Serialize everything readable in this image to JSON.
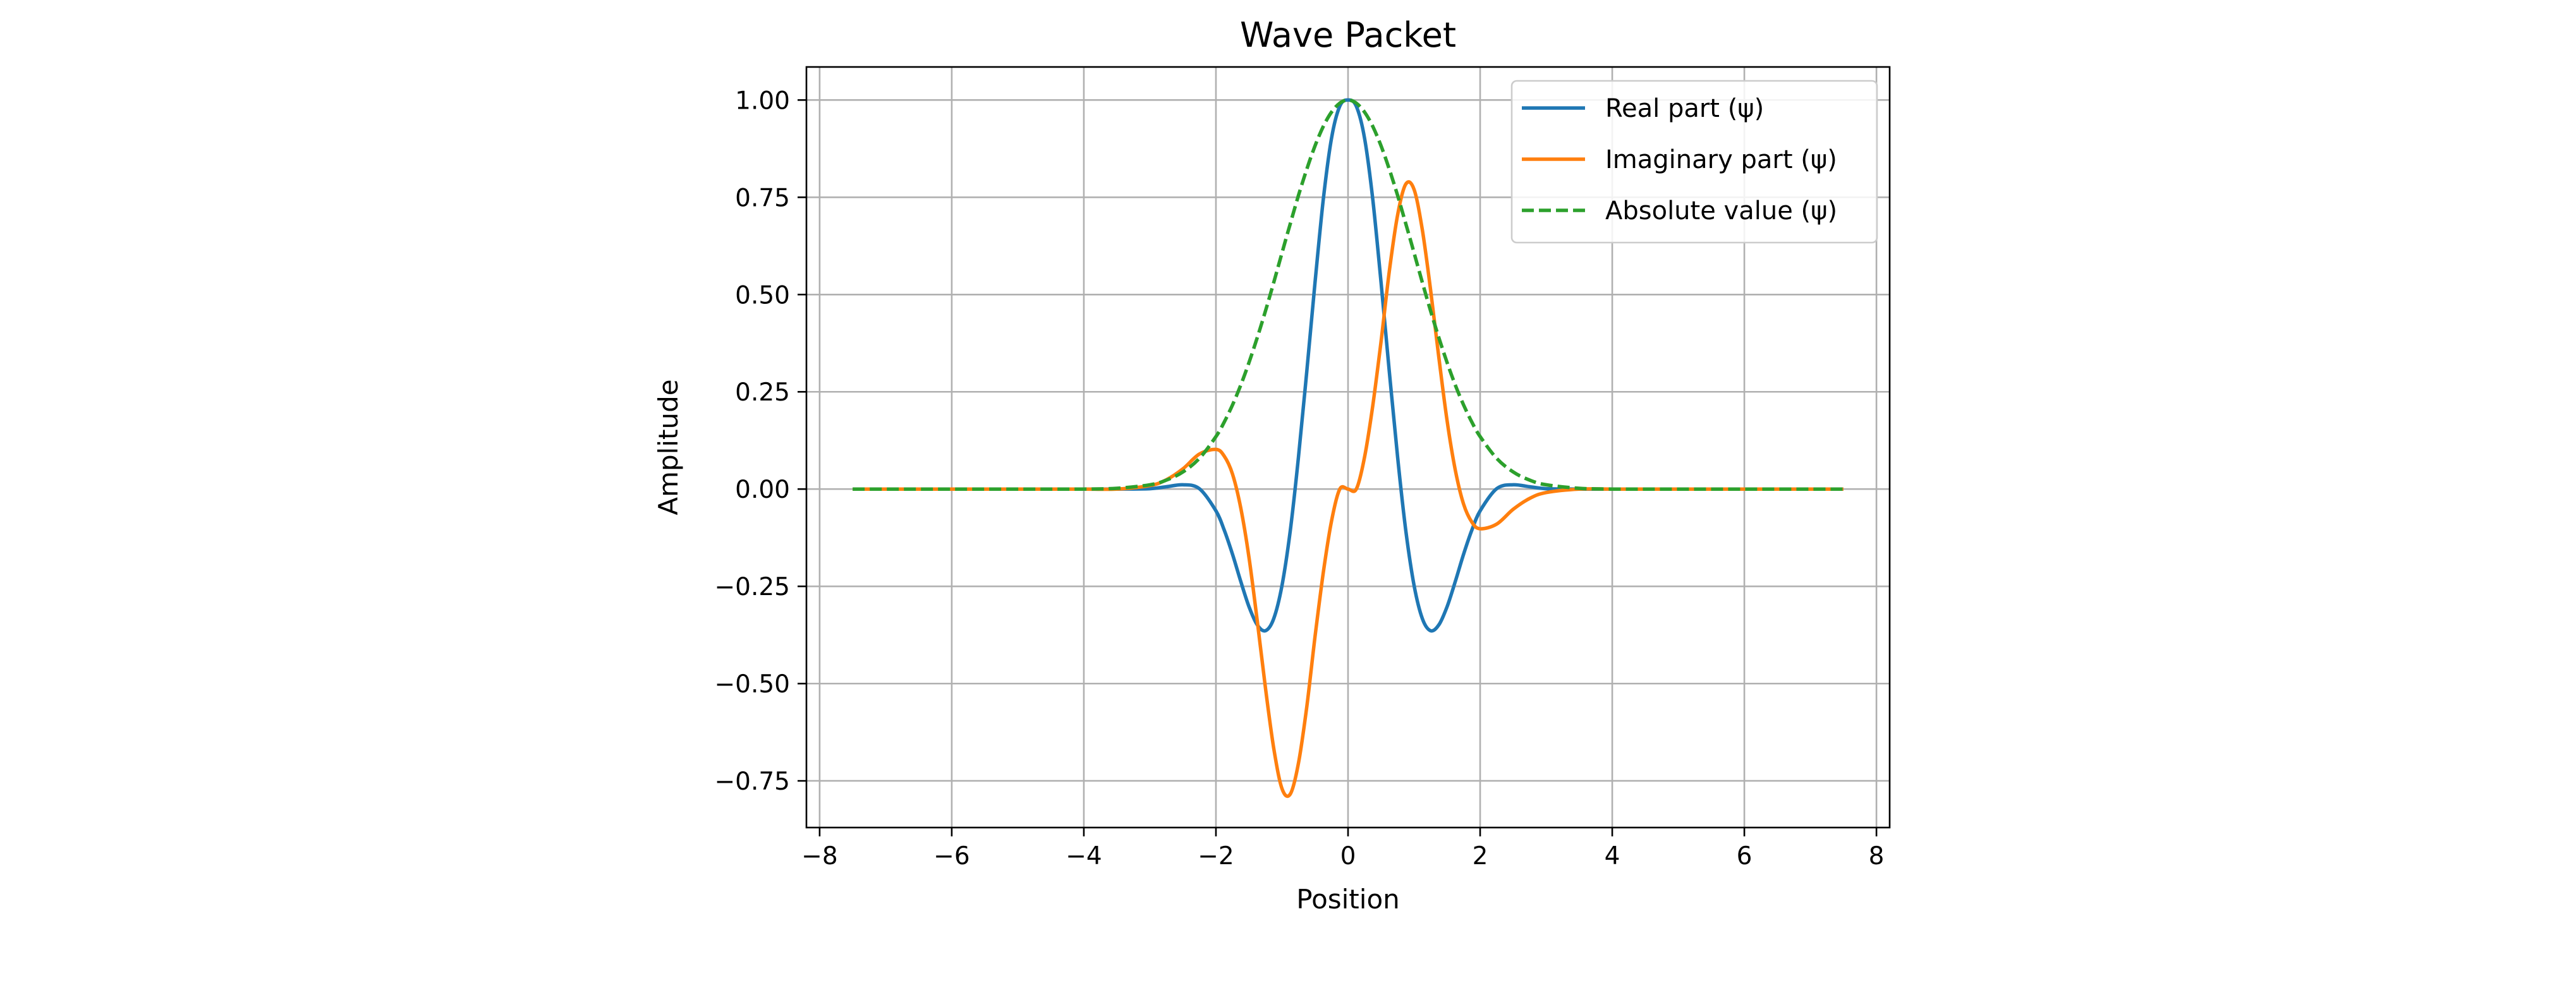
{
  "chart_data": {
    "type": "line",
    "title": "Wave Packet",
    "xlabel": "Position",
    "ylabel": "Amplitude",
    "xlim": [
      -8.2,
      8.2
    ],
    "ylim": [
      -0.87,
      1.085
    ],
    "xticks": [
      -8,
      -6,
      -4,
      -2,
      0,
      2,
      4,
      6,
      8
    ],
    "xtick_labels": [
      "−8",
      "−6",
      "−4",
      "−2",
      "0",
      "2",
      "4",
      "6",
      "8"
    ],
    "yticks": [
      -0.75,
      -0.5,
      -0.25,
      0.0,
      0.25,
      0.5,
      0.75,
      1.0
    ],
    "ytick_labels": [
      "−0.75",
      "−0.50",
      "−0.25",
      "0.00",
      "0.25",
      "0.50",
      "0.75",
      "1.00"
    ],
    "grid": true,
    "legend_position": "top-right",
    "x": [
      -7.5,
      -7.0,
      -6.5,
      -6.0,
      -5.5,
      -5.0,
      -4.5,
      -4.0,
      -3.5,
      -3.0,
      -2.75,
      -2.5,
      -2.25,
      -2.0,
      -1.875,
      -1.75,
      -1.625,
      -1.5,
      -1.375,
      -1.25,
      -1.125,
      -1.0,
      -0.875,
      -0.75,
      -0.625,
      -0.5,
      -0.375,
      -0.25,
      -0.125,
      0.0,
      0.125,
      0.25,
      0.375,
      0.5,
      0.625,
      0.75,
      0.875,
      1.0,
      1.125,
      1.25,
      1.375,
      1.5,
      1.625,
      1.75,
      1.875,
      2.0,
      2.25,
      2.5,
      2.75,
      3.0,
      3.5,
      4.0,
      4.5,
      5.0,
      5.5,
      6.0,
      6.5,
      7.0,
      7.5
    ],
    "series": [
      {
        "name": "Real part (ψ)",
        "color": "#1f77b4",
        "style": "solid",
        "values": [
          0.0,
          0.0,
          0.0,
          0.0,
          0.0,
          0.0,
          0.0,
          0.0,
          0.0,
          0.001,
          0.006,
          0.011,
          0.001,
          -0.056,
          -0.105,
          -0.167,
          -0.237,
          -0.302,
          -0.349,
          -0.364,
          -0.333,
          -0.248,
          -0.107,
          0.083,
          0.302,
          0.53,
          0.744,
          0.902,
          0.984,
          1.0,
          0.984,
          0.902,
          0.744,
          0.53,
          0.302,
          0.083,
          -0.107,
          -0.248,
          -0.333,
          -0.364,
          -0.349,
          -0.302,
          -0.237,
          -0.167,
          -0.105,
          -0.056,
          0.001,
          0.011,
          0.006,
          0.001,
          0.0,
          0.0,
          0.0,
          0.0,
          0.0,
          0.0,
          0.0,
          0.0,
          0.0
        ]
      },
      {
        "name": "Imaginary part (ψ)",
        "color": "#ff7f0e",
        "style": "solid",
        "values": [
          0.0,
          0.0,
          0.0,
          0.0,
          0.0,
          0.0,
          0.0,
          0.0,
          0.0,
          0.009,
          0.024,
          0.052,
          0.09,
          0.102,
          0.085,
          0.039,
          -0.048,
          -0.175,
          -0.338,
          -0.512,
          -0.666,
          -0.77,
          -0.784,
          -0.704,
          -0.56,
          -0.38,
          -0.215,
          -0.082,
          0.0,
          0.0,
          0.0,
          0.082,
          0.215,
          0.38,
          0.56,
          0.704,
          0.784,
          0.77,
          0.666,
          0.512,
          0.338,
          0.175,
          0.048,
          -0.039,
          -0.085,
          -0.102,
          -0.09,
          -0.052,
          -0.024,
          -0.009,
          0.0,
          0.0,
          0.0,
          0.0,
          0.0,
          0.0,
          0.0,
          0.0,
          0.0
        ]
      },
      {
        "name": "Absolute value (ψ)",
        "color": "#2ca02c",
        "style": "dashed",
        "values": [
          0.0,
          0.0,
          0.0,
          0.0,
          0.0,
          0.0,
          0.0,
          0.0,
          0.002,
          0.011,
          0.023,
          0.044,
          0.079,
          0.135,
          0.172,
          0.216,
          0.267,
          0.325,
          0.389,
          0.458,
          0.531,
          0.607,
          0.682,
          0.755,
          0.822,
          0.882,
          0.932,
          0.969,
          0.992,
          1.0,
          0.992,
          0.969,
          0.932,
          0.882,
          0.822,
          0.755,
          0.682,
          0.607,
          0.531,
          0.458,
          0.389,
          0.325,
          0.267,
          0.216,
          0.172,
          0.135,
          0.079,
          0.044,
          0.023,
          0.011,
          0.002,
          0.0,
          0.0,
          0.0,
          0.0,
          0.0,
          0.0,
          0.0,
          0.0
        ]
      }
    ]
  }
}
